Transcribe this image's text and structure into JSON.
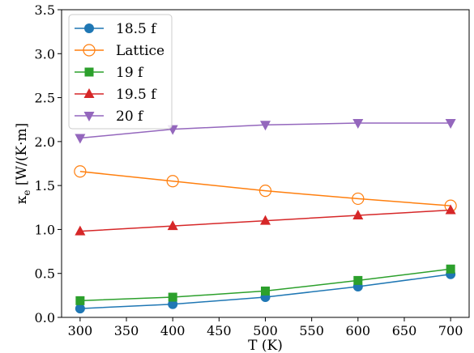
{
  "chart_data": {
    "type": "line",
    "xlabel": "T (K)",
    "ylabel": "κ",
    "ylabel_sub": "e",
    "ylabel_units": " [W/(K·m]",
    "xlim": [
      280,
      720
    ],
    "ylim": [
      0.0,
      3.5
    ],
    "xticks": [
      300,
      350,
      400,
      450,
      500,
      550,
      600,
      650,
      700
    ],
    "yticks": [
      "0.0",
      "0.5",
      "1.0",
      "1.5",
      "2.0",
      "2.5",
      "3.0",
      "3.5"
    ],
    "grid": false,
    "legend_position": "top-left",
    "x": [
      300,
      400,
      500,
      600,
      700
    ],
    "series": [
      {
        "name": "18.5 f",
        "values": [
          0.1,
          0.15,
          0.23,
          0.35,
          0.49
        ],
        "color": "#1f77b4",
        "marker": "circle"
      },
      {
        "name": "Lattice",
        "values": [
          1.66,
          1.55,
          1.44,
          1.35,
          1.27
        ],
        "color": "#ff7f0e",
        "marker": "open-circle"
      },
      {
        "name": "19 f",
        "values": [
          0.19,
          0.23,
          0.3,
          0.42,
          0.55
        ],
        "color": "#2ca02c",
        "marker": "square"
      },
      {
        "name": "19.5 f",
        "values": [
          0.98,
          1.04,
          1.1,
          1.16,
          1.22
        ],
        "color": "#d62728",
        "marker": "triangle-up"
      },
      {
        "name": "20 f",
        "values": [
          2.04,
          2.14,
          2.19,
          2.21,
          2.21
        ],
        "color": "#9467bd",
        "marker": "triangle-down"
      }
    ]
  }
}
